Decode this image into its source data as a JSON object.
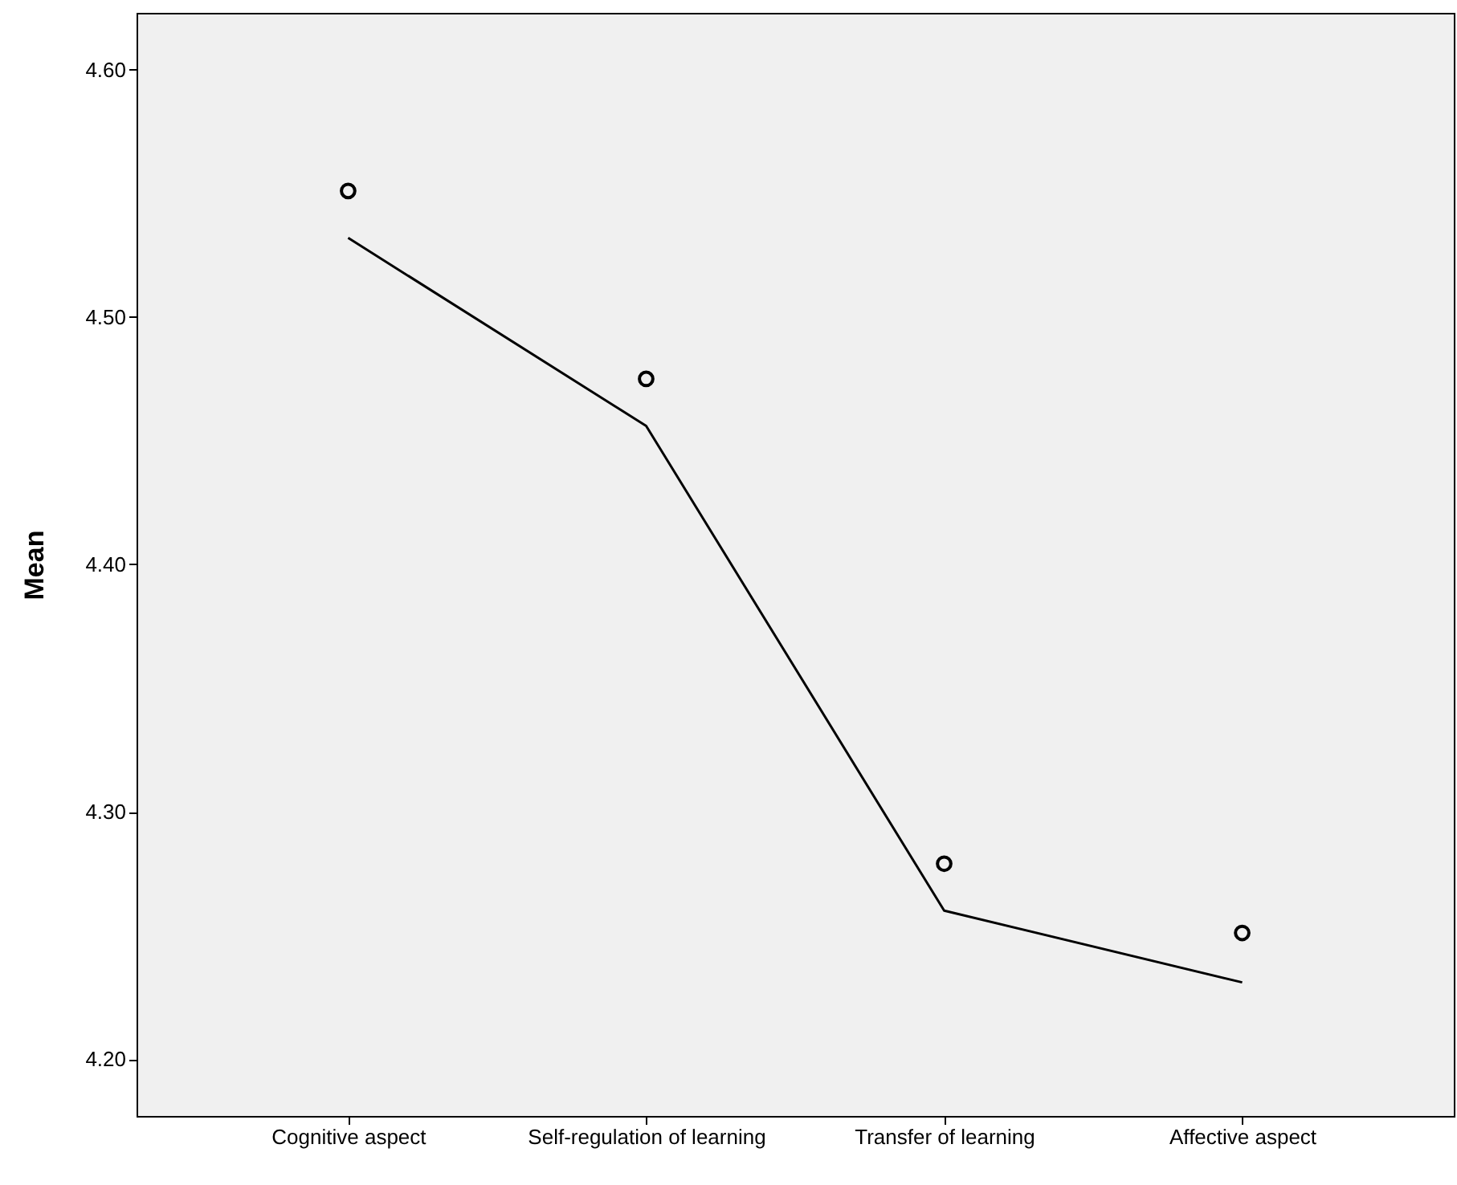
{
  "chart_data": {
    "type": "line",
    "ylabel": "Mean",
    "categories": [
      "Cognitive aspect",
      "Self-regulation of learning",
      "Transfer of learning",
      "Affective aspect"
    ],
    "series": [
      {
        "color": "#000000",
        "values": [
          4.532,
          4.456,
          4.26,
          4.231
        ]
      },
      {
        "type": "scatter",
        "color": "#000000",
        "values": [
          4.551,
          4.475,
          4.279,
          4.251
        ]
      }
    ],
    "ylim": [
      4.177,
      4.623
    ],
    "yticks": [
      {
        "value": 4.2,
        "label": "4.20"
      },
      {
        "value": 4.3,
        "label": "4.30"
      },
      {
        "value": 4.4,
        "label": "4.40"
      },
      {
        "value": 4.5,
        "label": "4.50"
      },
      {
        "value": 4.6,
        "label": "4.60"
      }
    ],
    "grid": false
  }
}
